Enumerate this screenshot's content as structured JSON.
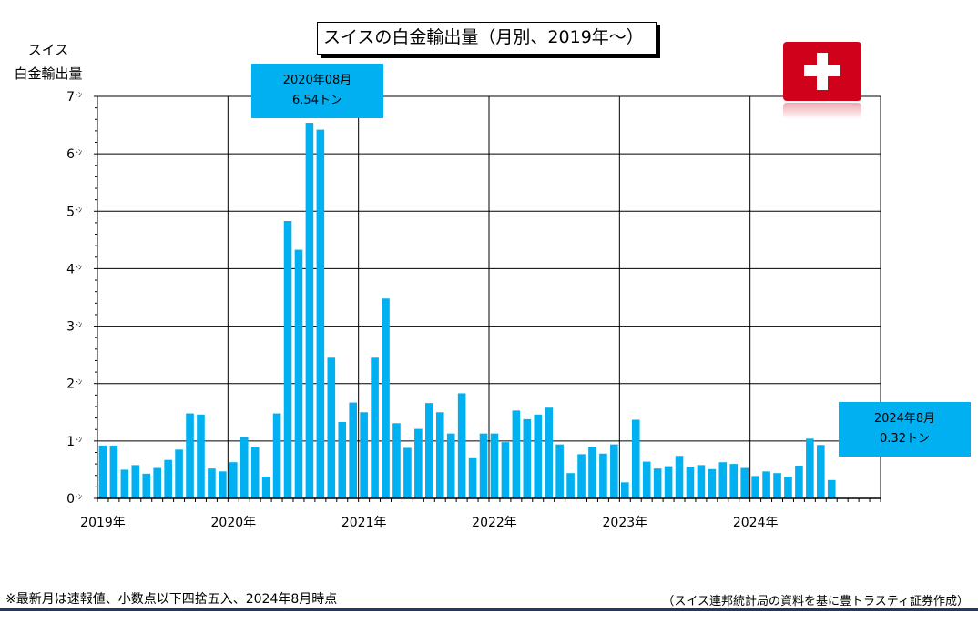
{
  "chart_data": {
    "type": "bar",
    "title": "スイスの白金輸出量（月別、2019年～）",
    "ylabel_lines": [
      "スイス",
      "白金輸出量"
    ],
    "ylim": [
      0,
      7
    ],
    "y_ticks": [
      {
        "v": 0,
        "num": "0",
        "unit": "ﾄﾝ"
      },
      {
        "v": 1,
        "num": "1",
        "unit": "ﾄﾝ"
      },
      {
        "v": 2,
        "num": "2",
        "unit": "ﾄﾝ"
      },
      {
        "v": 3,
        "num": "3",
        "unit": "ﾄﾝ"
      },
      {
        "v": 4,
        "num": "4",
        "unit": "ﾄﾝ"
      },
      {
        "v": 5,
        "num": "5",
        "unit": "ﾄﾝ"
      },
      {
        "v": 6,
        "num": "6",
        "unit": "ﾄﾝ"
      },
      {
        "v": 7,
        "num": "7",
        "unit": "ﾄﾝ"
      }
    ],
    "year_labels": [
      "2019年",
      "2020年",
      "2021年",
      "2022年",
      "2023年",
      "2024年"
    ],
    "months_total": 72,
    "values": [
      0.92,
      0.92,
      0.5,
      0.58,
      0.43,
      0.53,
      0.67,
      0.85,
      1.48,
      1.46,
      0.52,
      0.47,
      0.63,
      1.07,
      0.9,
      0.38,
      1.48,
      4.83,
      4.33,
      6.54,
      6.42,
      2.45,
      1.33,
      1.67,
      1.5,
      2.45,
      3.48,
      1.31,
      0.88,
      1.21,
      1.66,
      1.5,
      1.13,
      1.83,
      0.7,
      1.13,
      1.13,
      0.98,
      1.53,
      1.38,
      1.46,
      1.58,
      0.94,
      0.44,
      0.77,
      0.9,
      0.78,
      0.94,
      0.28,
      1.37,
      0.64,
      0.52,
      0.56,
      0.74,
      0.55,
      0.58,
      0.51,
      0.63,
      0.6,
      0.53,
      0.39,
      0.47,
      0.44,
      0.38,
      0.57,
      1.04,
      0.93,
      0.32
    ],
    "bar_color": "#00B0F0",
    "grid": true,
    "annotations": [
      {
        "line1": "2020年08月",
        "line2": "6.54トン"
      },
      {
        "line1": "2024年8月",
        "line2": "0.32トン"
      }
    ]
  },
  "footnote": "※最新月は速報値、小数点以下四捨五入、2024年8月時点",
  "source": "（スイス連邦統計局の資料を基に豊トラスティ証券作成）",
  "flag": {
    "icon": "swiss-flag-icon",
    "color": "#D0021B"
  }
}
